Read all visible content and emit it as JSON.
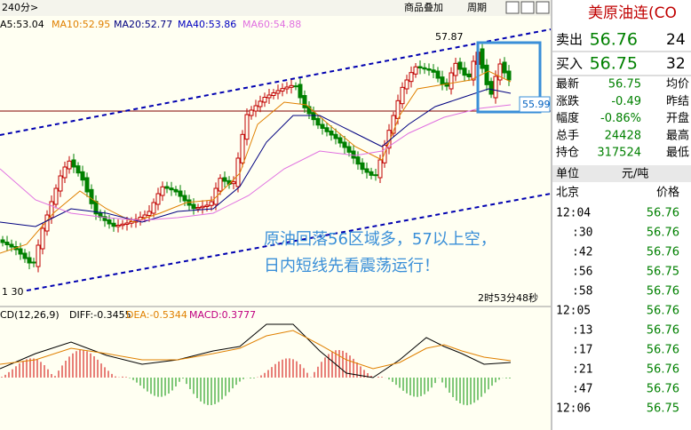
{
  "header": {
    "period": "240分>",
    "buttons": [
      "商品叠加",
      "周期"
    ],
    "title": "美原油连(CO"
  },
  "indicators": [
    "A5:53.04",
    "MA10:52.95",
    "MA20:52.77",
    "MA40:53.86",
    "MA60:54.88"
  ],
  "chart": {
    "high_label": "57.87",
    "price_box": "55.99",
    "low_label": "1 30",
    "countdown": "2时53分48秒",
    "annotation": [
      "原油回落56区域多，57以上空，",
      "日内短线先看震荡运行！"
    ]
  },
  "macd": [
    "CD(12,26,9)",
    "DIFF:-0.3455",
    "DEA:-0.5344",
    "MACD:0.3777"
  ],
  "quote": {
    "rows": [
      [
        "卖出",
        "56.76",
        "24"
      ],
      [
        "买入",
        "56.75",
        "32"
      ],
      [
        "最新",
        "56.75",
        "均价"
      ],
      [
        "涨跌",
        "-0.49",
        "昨结"
      ],
      [
        "幅度",
        "-0.86%",
        "开盘"
      ],
      [
        "总手",
        "24428",
        "最高"
      ],
      [
        "持仓",
        "317524",
        "最低"
      ]
    ]
  },
  "ticks": {
    "header": [
      "单位",
      "元/吨"
    ],
    "columns": [
      "北京",
      "价格"
    ],
    "rows": [
      [
        "12:04",
        "56.76"
      ],
      [
        ":30",
        "56.76"
      ],
      [
        ":42",
        "56.76"
      ],
      [
        ":56",
        "56.75"
      ],
      [
        ":58",
        "56.76"
      ],
      [
        "12:05",
        "56.76"
      ],
      [
        ":13",
        "56.76"
      ],
      [
        ":17",
        "56.76"
      ],
      [
        ":21",
        "56.76"
      ],
      [
        ":47",
        "56.76"
      ],
      [
        "12:06",
        "56.75"
      ]
    ]
  }
}
